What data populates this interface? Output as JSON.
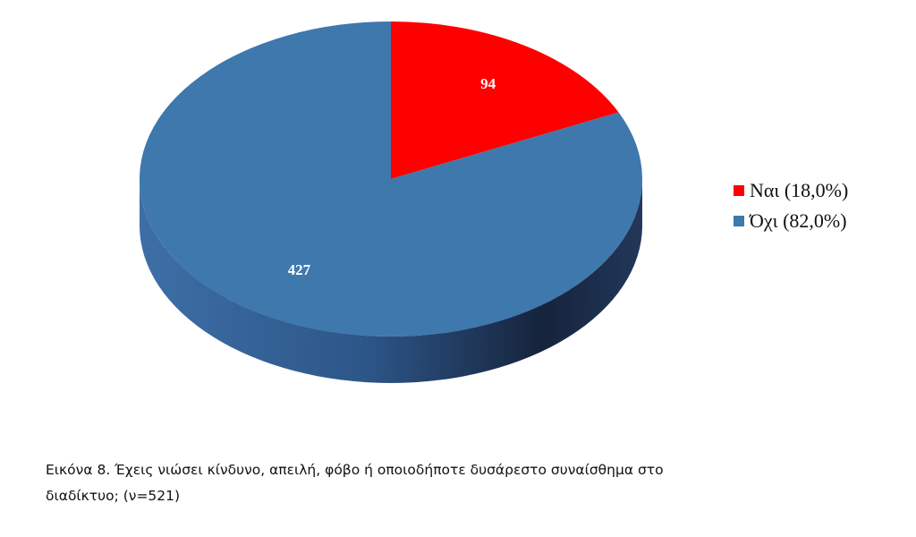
{
  "chart_data": {
    "type": "pie",
    "style": "3d",
    "categories": [
      "Ναι (18,0%)",
      "Όχι (82,0%)"
    ],
    "values": [
      94,
      427
    ],
    "data_labels": [
      "94",
      "427"
    ],
    "colors": [
      "#ff0000",
      "#3e78ad"
    ],
    "side_color": "#2c5585",
    "legend_placement": "right",
    "caption": "Εικόνα 8. Έχεις νιώσει κίνδυνο, απειλή, φόβο ή οποιοδήποτε  δυσάρεστο  συναίσθημα  στο διαδίκτυο; (ν=521)"
  }
}
